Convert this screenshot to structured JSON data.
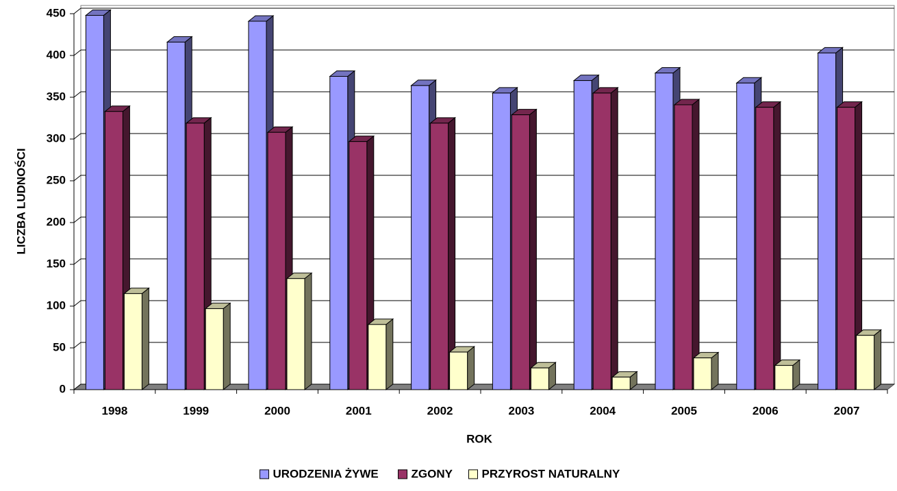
{
  "chart_data": {
    "type": "bar3d",
    "categories": [
      "1998",
      "1999",
      "2000",
      "2001",
      "2002",
      "2003",
      "2004",
      "2005",
      "2006",
      "2007"
    ],
    "series": [
      {
        "name": "URODZENIA ŻYWE",
        "color": "#9999ff",
        "values": [
          448,
          416,
          441,
          375,
          364,
          355,
          370,
          379,
          367,
          403
        ]
      },
      {
        "name": "ZGONY",
        "color": "#993366",
        "values": [
          333,
          319,
          308,
          297,
          319,
          329,
          355,
          341,
          338,
          338
        ]
      },
      {
        "name": "PRZYROST NATURALNY",
        "color": "#ffffcc",
        "values": [
          115,
          97,
          133,
          78,
          45,
          26,
          15,
          38,
          29,
          65
        ]
      }
    ],
    "xlabel": "ROK",
    "ylabel": "LICZBA LUDNOŚCI",
    "ylim": [
      0,
      450
    ],
    "yticks": [
      0,
      50,
      100,
      150,
      200,
      250,
      300,
      350,
      400,
      450
    ],
    "grid": true,
    "legend": "bottom"
  }
}
